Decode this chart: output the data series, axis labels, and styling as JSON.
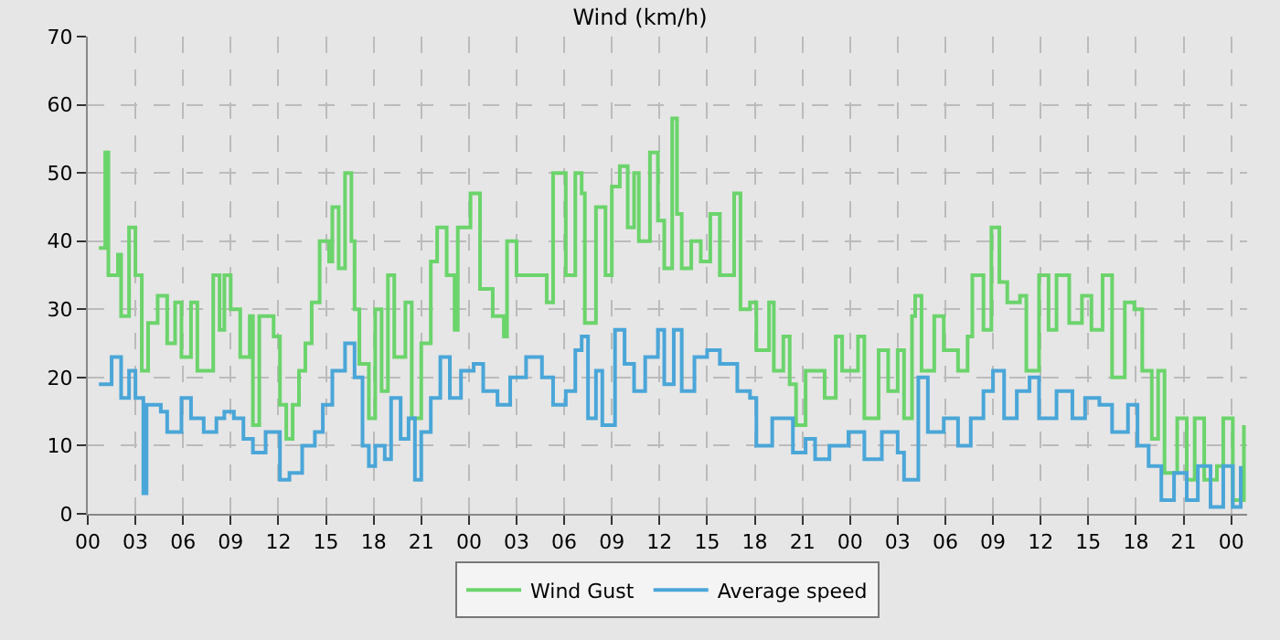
{
  "chart_data": {
    "type": "step",
    "title": "Wind (km/h)",
    "xlim": [
      0,
      73
    ],
    "ylim": [
      0,
      70
    ],
    "yticks": [
      0,
      10,
      20,
      30,
      40,
      50,
      60,
      70
    ],
    "xticks": [
      {
        "value": 0,
        "label": "00"
      },
      {
        "value": 3,
        "label": "03"
      },
      {
        "value": 6,
        "label": "06"
      },
      {
        "value": 9,
        "label": "09"
      },
      {
        "value": 12,
        "label": "12"
      },
      {
        "value": 15,
        "label": "15"
      },
      {
        "value": 18,
        "label": "18"
      },
      {
        "value": 21,
        "label": "21"
      },
      {
        "value": 24,
        "label": "00"
      },
      {
        "value": 27,
        "label": "03"
      },
      {
        "value": 30,
        "label": "06"
      },
      {
        "value": 33,
        "label": "09"
      },
      {
        "value": 36,
        "label": "12"
      },
      {
        "value": 39,
        "label": "15"
      },
      {
        "value": 42,
        "label": "18"
      },
      {
        "value": 45,
        "label": "21"
      },
      {
        "value": 48,
        "label": "00"
      },
      {
        "value": 51,
        "label": "03"
      },
      {
        "value": 54,
        "label": "06"
      },
      {
        "value": 57,
        "label": "09"
      },
      {
        "value": 60,
        "label": "12"
      },
      {
        "value": 63,
        "label": "15"
      },
      {
        "value": 66,
        "label": "18"
      },
      {
        "value": 69,
        "label": "21"
      },
      {
        "value": 72,
        "label": "00"
      }
    ],
    "grid": true,
    "legend": "bottom",
    "line_style": "solid",
    "marker": "none",
    "series": [
      {
        "name": "Wind Gust",
        "color": "#6bd46b",
        "x": [
          0.7,
          1.1,
          1.3,
          1.9,
          2.1,
          2.6,
          3.0,
          3.4,
          3.8,
          4.4,
          5.0,
          5.5,
          5.9,
          6.5,
          6.9,
          7.9,
          8.3,
          8.6,
          9.0,
          9.6,
          10.2,
          10.4,
          10.8,
          11.7,
          12.1,
          12.5,
          12.9,
          13.3,
          13.7,
          14.1,
          14.6,
          15.2,
          15.4,
          15.8,
          16.2,
          16.6,
          16.8,
          17.1,
          17.7,
          18.1,
          18.5,
          18.9,
          19.3,
          20.0,
          20.4,
          21.0,
          21.6,
          22.0,
          22.6,
          23.1,
          23.3,
          24.1,
          24.7,
          25.5,
          26.2,
          26.4,
          27.0,
          28.9,
          29.3,
          30.1,
          30.7,
          31.1,
          31.3,
          32.0,
          32.6,
          33.0,
          33.5,
          34.0,
          34.4,
          34.7,
          35.4,
          35.9,
          36.3,
          36.8,
          37.1,
          37.4,
          38.0,
          38.6,
          39.2,
          39.8,
          40.7,
          41.1,
          41.7,
          42.1,
          42.9,
          43.2,
          43.8,
          44.2,
          44.6,
          45.2,
          46.4,
          47.1,
          47.5,
          48.5,
          48.9,
          49.8,
          50.4,
          51.0,
          51.4,
          51.9,
          52.1,
          52.5,
          53.3,
          53.9,
          54.8,
          55.4,
          55.7,
          56.4,
          56.9,
          57.4,
          57.9,
          58.7,
          59.1,
          59.9,
          60.5,
          61.0,
          61.8,
          62.6,
          63.2,
          63.9,
          64.5,
          65.3,
          65.9,
          66.4,
          67.0,
          67.4,
          67.8,
          68.6,
          69.2,
          69.7,
          70.3,
          71.1,
          71.5,
          72.1,
          72.8
        ],
        "values": [
          39,
          53,
          35,
          38,
          29,
          42,
          35,
          21,
          28,
          32,
          25,
          31,
          23,
          31,
          21,
          35,
          27,
          35,
          30,
          23,
          29,
          13,
          29,
          26,
          16,
          11,
          16,
          21,
          25,
          31,
          40,
          37,
          45,
          36,
          50,
          40,
          30,
          22,
          14,
          30,
          18,
          35,
          23,
          31,
          14,
          25,
          37,
          42,
          35,
          27,
          42,
          47,
          33,
          29,
          26,
          40,
          35,
          31,
          50,
          35,
          50,
          47,
          28,
          45,
          35,
          48,
          51,
          42,
          50,
          40,
          53,
          43,
          36,
          58,
          44,
          36,
          40,
          37,
          44,
          35,
          47,
          30,
          31,
          24,
          31,
          21,
          26,
          19,
          13,
          21,
          17,
          26,
          21,
          26,
          14,
          24,
          18,
          24,
          14,
          29,
          32,
          21,
          29,
          24,
          21,
          26,
          35,
          27,
          42,
          34,
          31,
          32,
          21,
          35,
          27,
          35,
          28,
          32,
          27,
          35,
          20,
          31,
          30,
          21,
          11,
          21,
          6,
          14,
          5,
          14,
          5,
          7,
          14,
          2,
          13
        ]
      },
      {
        "name": "Average speed",
        "color": "#4aa6d8",
        "x": [
          0.7,
          1.5,
          2.1,
          2.6,
          3.0,
          3.5,
          3.7,
          4.6,
          5.0,
          5.9,
          6.5,
          7.3,
          8.1,
          8.6,
          9.2,
          9.8,
          10.4,
          11.2,
          12.1,
          12.7,
          13.5,
          14.3,
          14.8,
          15.4,
          16.2,
          16.8,
          17.3,
          17.7,
          18.1,
          18.7,
          19.1,
          19.7,
          20.2,
          20.6,
          21.0,
          21.6,
          22.2,
          22.8,
          23.5,
          24.3,
          24.9,
          25.8,
          26.6,
          27.6,
          28.6,
          29.3,
          30.1,
          30.7,
          31.1,
          31.5,
          32.0,
          32.4,
          33.2,
          33.8,
          34.4,
          35.1,
          35.9,
          36.3,
          36.9,
          37.4,
          38.2,
          39.0,
          39.8,
          40.9,
          41.7,
          42.1,
          43.1,
          43.8,
          44.4,
          45.2,
          45.8,
          46.7,
          47.9,
          48.9,
          50.0,
          51.0,
          51.4,
          52.3,
          52.9,
          53.9,
          54.8,
          55.6,
          56.4,
          57.0,
          57.7,
          58.5,
          59.3,
          59.9,
          61.0,
          62.0,
          62.8,
          63.7,
          64.5,
          65.5,
          66.1,
          66.8,
          67.6,
          68.4,
          69.2,
          69.9,
          70.7,
          71.5,
          72.1,
          72.6
        ],
        "values": [
          19,
          23,
          17,
          21,
          17,
          3,
          16,
          15,
          12,
          17,
          14,
          12,
          14,
          15,
          14,
          11,
          9,
          12,
          5,
          6,
          10,
          12,
          16,
          21,
          25,
          20,
          10,
          7,
          10,
          8,
          17,
          11,
          14,
          5,
          12,
          17,
          23,
          17,
          21,
          22,
          18,
          16,
          20,
          23,
          20,
          16,
          18,
          24,
          26,
          14,
          21,
          13,
          27,
          22,
          18,
          23,
          27,
          19,
          27,
          18,
          23,
          24,
          22,
          18,
          17,
          10,
          14,
          14,
          9,
          11,
          8,
          10,
          12,
          8,
          12,
          9,
          5,
          20,
          12,
          14,
          10,
          14,
          18,
          21,
          14,
          18,
          20,
          14,
          18,
          14,
          17,
          16,
          12,
          16,
          10,
          7,
          2,
          6,
          2,
          7,
          1,
          7,
          1,
          7
        ]
      }
    ]
  }
}
